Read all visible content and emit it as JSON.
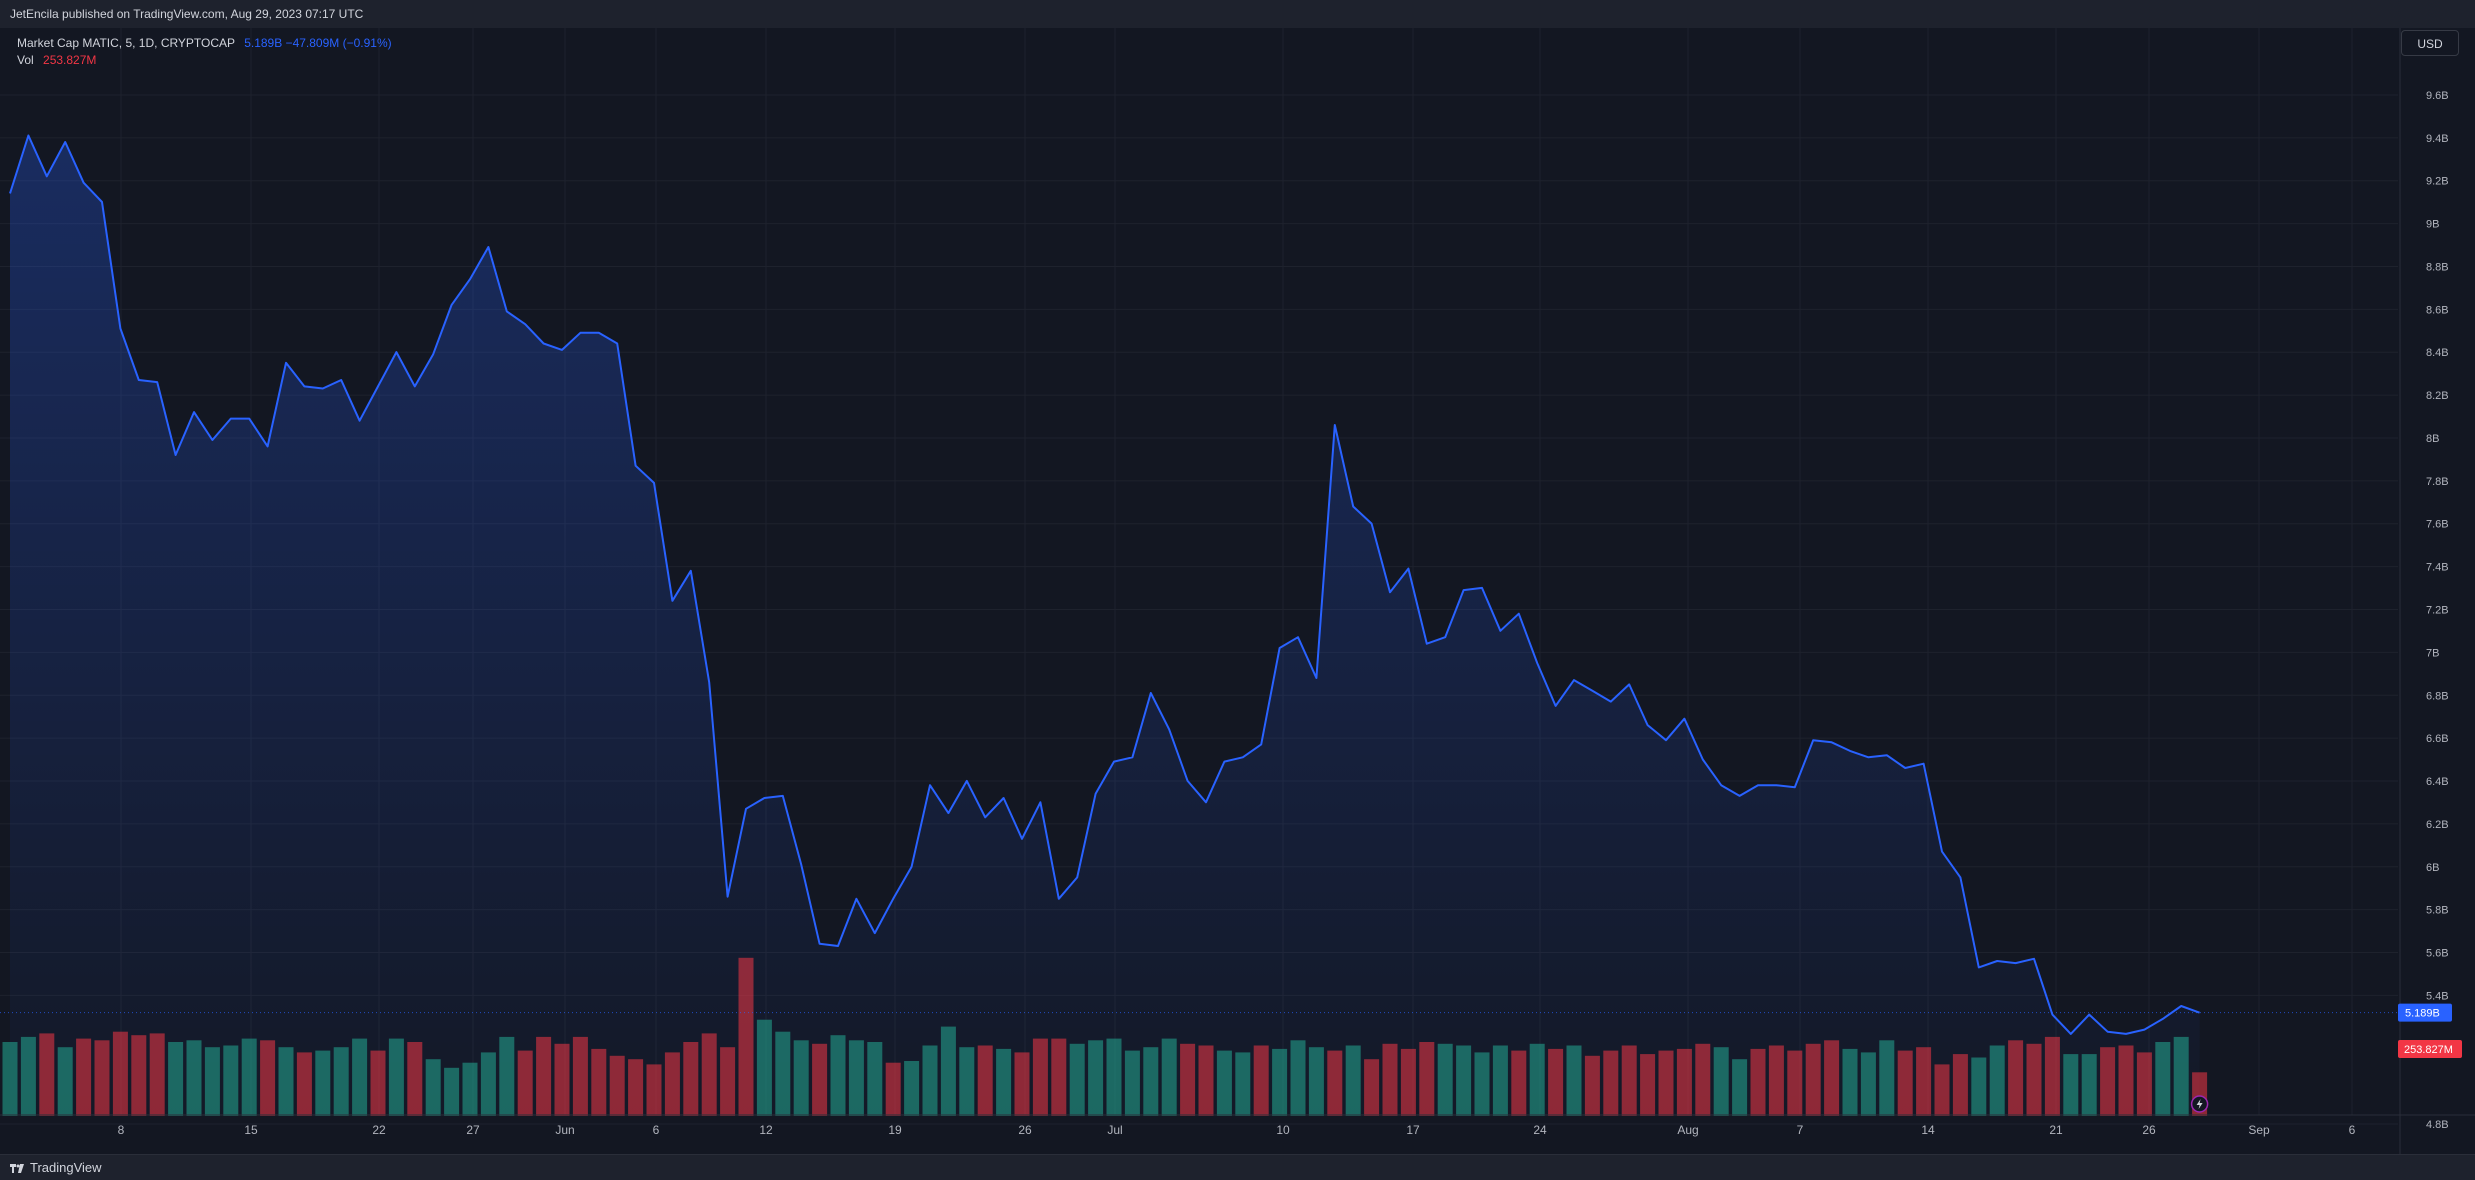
{
  "header": {
    "published": "JetEncila published on TradingView.com, Aug 29, 2023 07:17 UTC"
  },
  "legend": {
    "symbol": "Market Cap MATIC, 5, 1D, CRYPTOCAP",
    "values": "5.189B  −47.809M (−0.91%)",
    "volume_label": "Vol",
    "volume_value": "253.827M"
  },
  "currency_button": "USD",
  "footer": {
    "brand": "TradingView"
  },
  "colors": {
    "background": "#131722",
    "line": "#2962ff",
    "area_top": "#1f2e6b",
    "up_volume": "#22ab94",
    "down_volume": "#f23645",
    "grid": "#1e222d"
  },
  "chart_data": {
    "type": "line",
    "series": [
      {
        "name": "Market Cap MATIC",
        "values": [
          9.01,
          9.28,
          9.09,
          9.25,
          9.06,
          8.97,
          8.38,
          8.14,
          8.13,
          7.79,
          7.99,
          7.86,
          7.96,
          7.96,
          7.83,
          8.22,
          8.11,
          8.1,
          8.14,
          7.95,
          8.11,
          8.27,
          8.11,
          8.26,
          8.49,
          8.61,
          8.76,
          8.46,
          8.4,
          8.31,
          8.28,
          8.36,
          8.36,
          8.31,
          7.74,
          7.66,
          7.11,
          7.25,
          6.73,
          5.73,
          6.14,
          6.19,
          6.2,
          5.88,
          5.51,
          5.5,
          5.72,
          5.56,
          5.72,
          5.87,
          6.25,
          6.12,
          6.27,
          6.1,
          6.19,
          6.0,
          6.17,
          5.72,
          5.82,
          6.21,
          6.36,
          6.38,
          6.68,
          6.51,
          6.27,
          6.17,
          6.36,
          6.38,
          6.44,
          6.89,
          6.94,
          6.75,
          7.93,
          7.55,
          7.47,
          7.15,
          7.26,
          6.91,
          6.94,
          7.16,
          7.17,
          6.97,
          7.05,
          6.82,
          6.62,
          6.74,
          6.69,
          6.64,
          6.72,
          6.53,
          6.46,
          6.56,
          6.37,
          6.25,
          6.2,
          6.25,
          6.25,
          6.24,
          6.46,
          6.45,
          6.41,
          6.38,
          6.39,
          6.33,
          6.35,
          5.94,
          5.82,
          5.4,
          5.43,
          5.42,
          5.44,
          5.18,
          5.09,
          5.18,
          5.1,
          5.09,
          5.11,
          5.16,
          5.22,
          5.189
        ]
      }
    ],
    "volume_M": [
      430,
      460,
      480,
      400,
      450,
      440,
      490,
      470,
      480,
      430,
      440,
      400,
      410,
      450,
      440,
      400,
      370,
      380,
      400,
      450,
      380,
      450,
      430,
      330,
      280,
      310,
      370,
      460,
      380,
      460,
      420,
      460,
      390,
      350,
      330,
      300,
      370,
      430,
      480,
      400,
      920,
      560,
      490,
      440,
      420,
      470,
      440,
      430,
      310,
      320,
      410,
      520,
      400,
      410,
      390,
      370,
      450,
      450,
      420,
      440,
      450,
      380,
      400,
      450,
      420,
      410,
      380,
      370,
      410,
      390,
      440,
      400,
      380,
      410,
      330,
      420,
      390,
      430,
      420,
      410,
      370,
      410,
      380,
      420,
      390,
      410,
      350,
      380,
      410,
      360,
      380,
      390,
      420,
      400,
      330,
      390,
      410,
      380,
      420,
      440,
      390,
      370,
      440,
      380,
      400,
      300,
      360,
      340,
      410,
      440,
      420,
      460,
      360,
      360,
      400,
      410,
      370,
      430,
      460,
      253.827
    ],
    "volume_up": [
      1,
      1,
      0,
      1,
      0,
      0,
      0,
      0,
      0,
      1,
      1,
      1,
      1,
      1,
      0,
      1,
      0,
      1,
      1,
      1,
      0,
      1,
      0,
      1,
      1,
      1,
      1,
      1,
      0,
      0,
      0,
      0,
      0,
      0,
      0,
      0,
      0,
      0,
      0,
      0,
      0,
      1,
      1,
      1,
      0,
      1,
      1,
      1,
      0,
      1,
      1,
      1,
      1,
      0,
      1,
      0,
      0,
      0,
      1,
      1,
      1,
      1,
      1,
      1,
      0,
      0,
      1,
      1,
      0,
      1,
      1,
      1,
      0,
      1,
      0,
      0,
      0,
      0,
      1,
      1,
      1,
      1,
      0,
      1,
      0,
      1,
      0,
      0,
      0,
      0,
      0,
      0,
      0,
      1,
      1,
      0,
      0,
      0,
      0,
      0,
      1,
      1,
      1,
      0,
      0,
      0,
      0,
      1,
      1,
      0,
      0,
      0,
      1,
      1,
      0,
      0,
      0,
      1,
      1,
      0
    ],
    "x_tick_labels": [
      "8",
      "15",
      "22",
      "27",
      "Jun",
      "6",
      "12",
      "19",
      "26",
      "Jul",
      "10",
      "17",
      "24",
      "Aug",
      "7",
      "14",
      "21",
      "26",
      "Sep",
      "6"
    ],
    "y_tick_labels": [
      "9.6B",
      "9.4B",
      "9.2B",
      "9B",
      "8.8B",
      "8.6B",
      "8.4B",
      "8.2B",
      "8B",
      "7.8B",
      "7.6B",
      "7.4B",
      "7.2B",
      "7B",
      "6.8B",
      "6.6B",
      "6.4B",
      "6.2B",
      "6B",
      "5.8B",
      "5.6B",
      "5.4B",
      "4.8B"
    ],
    "y_range_B": [
      4.7,
      9.7
    ],
    "last_value_label": "5.189B",
    "last_volume_label": "253.827M",
    "grid": true,
    "xlabel": "",
    "ylabel": ""
  }
}
